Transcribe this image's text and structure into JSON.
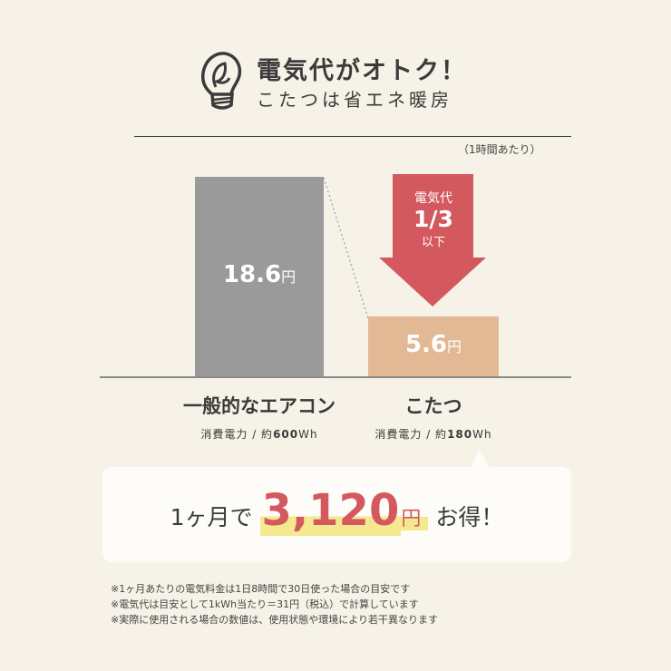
{
  "header": {
    "icon": "lightbulb-leaf-icon",
    "title": "電気代がオトク！",
    "subtitle": "こたつは省エネ暖房",
    "unit_note": "（1時間あたり）"
  },
  "chart_data": {
    "type": "bar",
    "categories": [
      "一般的なエアコン",
      "こたつ"
    ],
    "values": [
      18.6,
      5.6
    ],
    "value_labels": [
      "18.6",
      "5.6"
    ],
    "value_unit": "円",
    "ylim": [
      0,
      18.6
    ],
    "colors": [
      "#9a9a9a",
      "#e2b895"
    ],
    "power_labels": [
      {
        "prefix": "消費電力 / 約",
        "value": "600",
        "unit": "Wh"
      },
      {
        "prefix": "消費電力 / 約",
        "value": "180",
        "unit": "Wh"
      }
    ],
    "arrow": {
      "line1": "電気代",
      "line2": "1/3",
      "line3": "以下",
      "color": "#d4595f"
    }
  },
  "saving": {
    "prefix": "1ヶ月で",
    "amount": "3,120",
    "yen": "円",
    "suffix": "お得！"
  },
  "notes": [
    "※1ヶ月あたりの電気料金は1日8時間で30日使った場合の目安です",
    "※電気代は目安として1kWh当たり＝31円（税込）で計算しています",
    "※実際に使用される場合の数値は、使用状態や環境により若干異なります"
  ]
}
